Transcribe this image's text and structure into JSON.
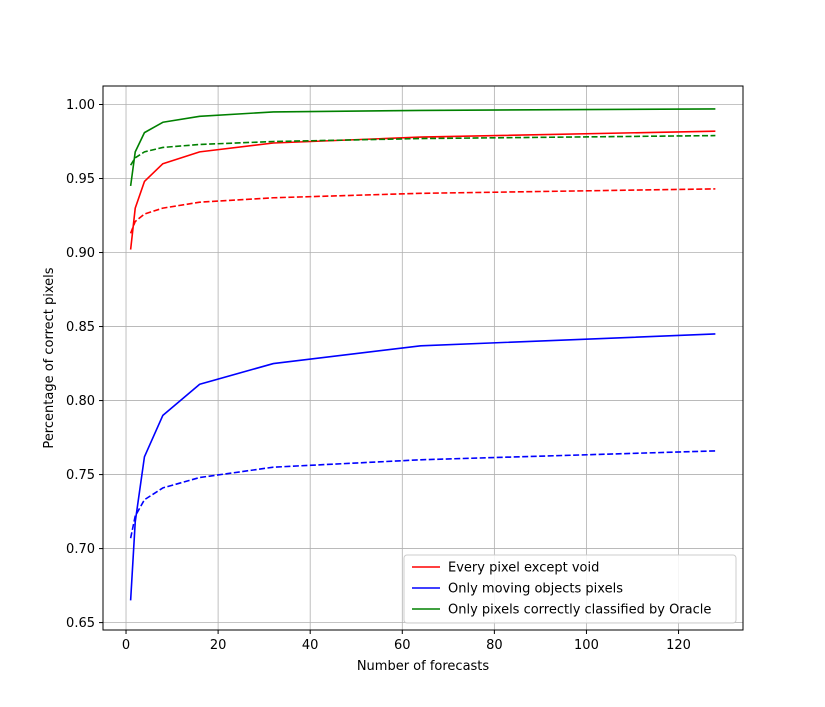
{
  "chart_data": {
    "type": "line",
    "title": "",
    "xlabel": "Number of forecasts",
    "ylabel": "Percentage of correct pixels",
    "xlim": [
      -5,
      134
    ],
    "ylim": [
      0.645,
      1.0125
    ],
    "xticks": [
      0,
      20,
      40,
      60,
      80,
      100,
      120
    ],
    "yticks": [
      0.65,
      0.7,
      0.75,
      0.8,
      0.85,
      0.9,
      0.95,
      1.0
    ],
    "ytick_labels": [
      "0.65",
      "0.70",
      "0.75",
      "0.80",
      "0.85",
      "0.90",
      "0.95",
      "1.00"
    ],
    "xtick_labels": [
      "0",
      "20",
      "40",
      "60",
      "80",
      "100",
      "120"
    ],
    "grid": true,
    "legend_position": "bottom-right",
    "x": [
      1,
      2,
      4,
      8,
      16,
      32,
      64,
      128
    ],
    "series": [
      {
        "name": "Every pixel except void",
        "color": "#ff0000",
        "style": "solid",
        "legend": true,
        "values": [
          0.902,
          0.93,
          0.948,
          0.96,
          0.968,
          0.974,
          0.978,
          0.982
        ]
      },
      {
        "name": "Only moving objects pixels",
        "color": "#0000ff",
        "style": "solid",
        "legend": true,
        "values": [
          0.665,
          0.718,
          0.762,
          0.79,
          0.811,
          0.825,
          0.837,
          0.845
        ]
      },
      {
        "name": "Only pixels correctly classified by Oracle",
        "color": "#008000",
        "style": "solid",
        "legend": true,
        "values": [
          0.945,
          0.968,
          0.981,
          0.988,
          0.992,
          0.995,
          0.996,
          0.997
        ]
      },
      {
        "color": "#ff0000",
        "style": "dashed",
        "legend": false,
        "values": [
          0.913,
          0.921,
          0.926,
          0.93,
          0.934,
          0.937,
          0.94,
          0.943
        ]
      },
      {
        "color": "#0000ff",
        "style": "dashed",
        "legend": false,
        "values": [
          0.707,
          0.722,
          0.733,
          0.741,
          0.748,
          0.755,
          0.76,
          0.766
        ]
      },
      {
        "color": "#008000",
        "style": "dashed",
        "legend": false,
        "values": [
          0.959,
          0.964,
          0.968,
          0.971,
          0.973,
          0.975,
          0.977,
          0.979
        ]
      }
    ]
  }
}
